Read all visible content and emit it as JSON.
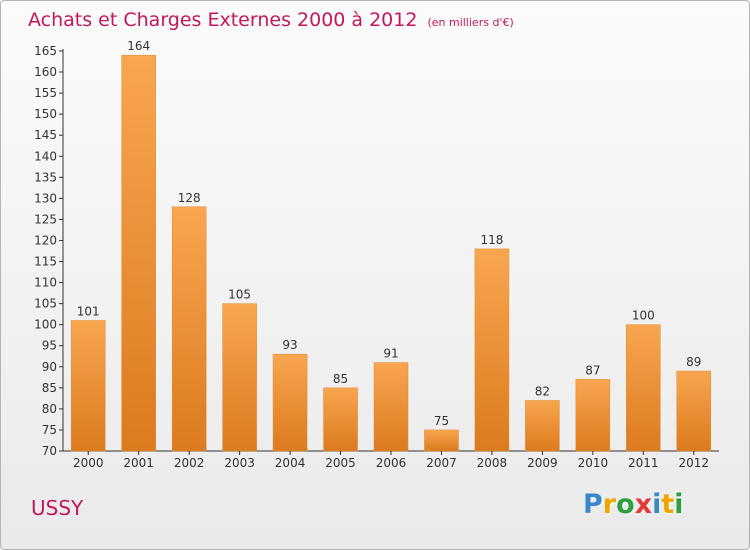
{
  "title": "Achats et Charges Externes 2000 à 2012",
  "subtitle": "(en milliers d'€)",
  "town": "USSY",
  "logo": {
    "letters": [
      "P",
      "r",
      "o",
      "x",
      "i",
      "t",
      "i"
    ],
    "colors": [
      "#3a87c9",
      "#f0a400",
      "#2e9e3e",
      "#e53935",
      "#3a87c9",
      "#f0a400",
      "#2e9e3e"
    ]
  },
  "colors": {
    "bar_light": "#f8a650",
    "bar_dark": "#dc7a1e",
    "title": "#c2185b",
    "axis": "#333333"
  },
  "chart_data": {
    "type": "bar",
    "categories": [
      "2000",
      "2001",
      "2002",
      "2003",
      "2004",
      "2005",
      "2006",
      "2007",
      "2008",
      "2009",
      "2010",
      "2011",
      "2012"
    ],
    "values": [
      101,
      164,
      128,
      105,
      93,
      85,
      91,
      75,
      118,
      82,
      87,
      100,
      89
    ],
    "title": "Achats et Charges Externes 2000 à 2012",
    "subtitle": "(en milliers d'€)",
    "xlabel": "",
    "ylabel": "",
    "ylim": [
      70,
      165
    ],
    "yticks": [
      70,
      75,
      80,
      85,
      90,
      95,
      100,
      105,
      110,
      115,
      120,
      125,
      130,
      135,
      140,
      145,
      150,
      155,
      160,
      165
    ],
    "grid": false,
    "data_labels": true
  }
}
